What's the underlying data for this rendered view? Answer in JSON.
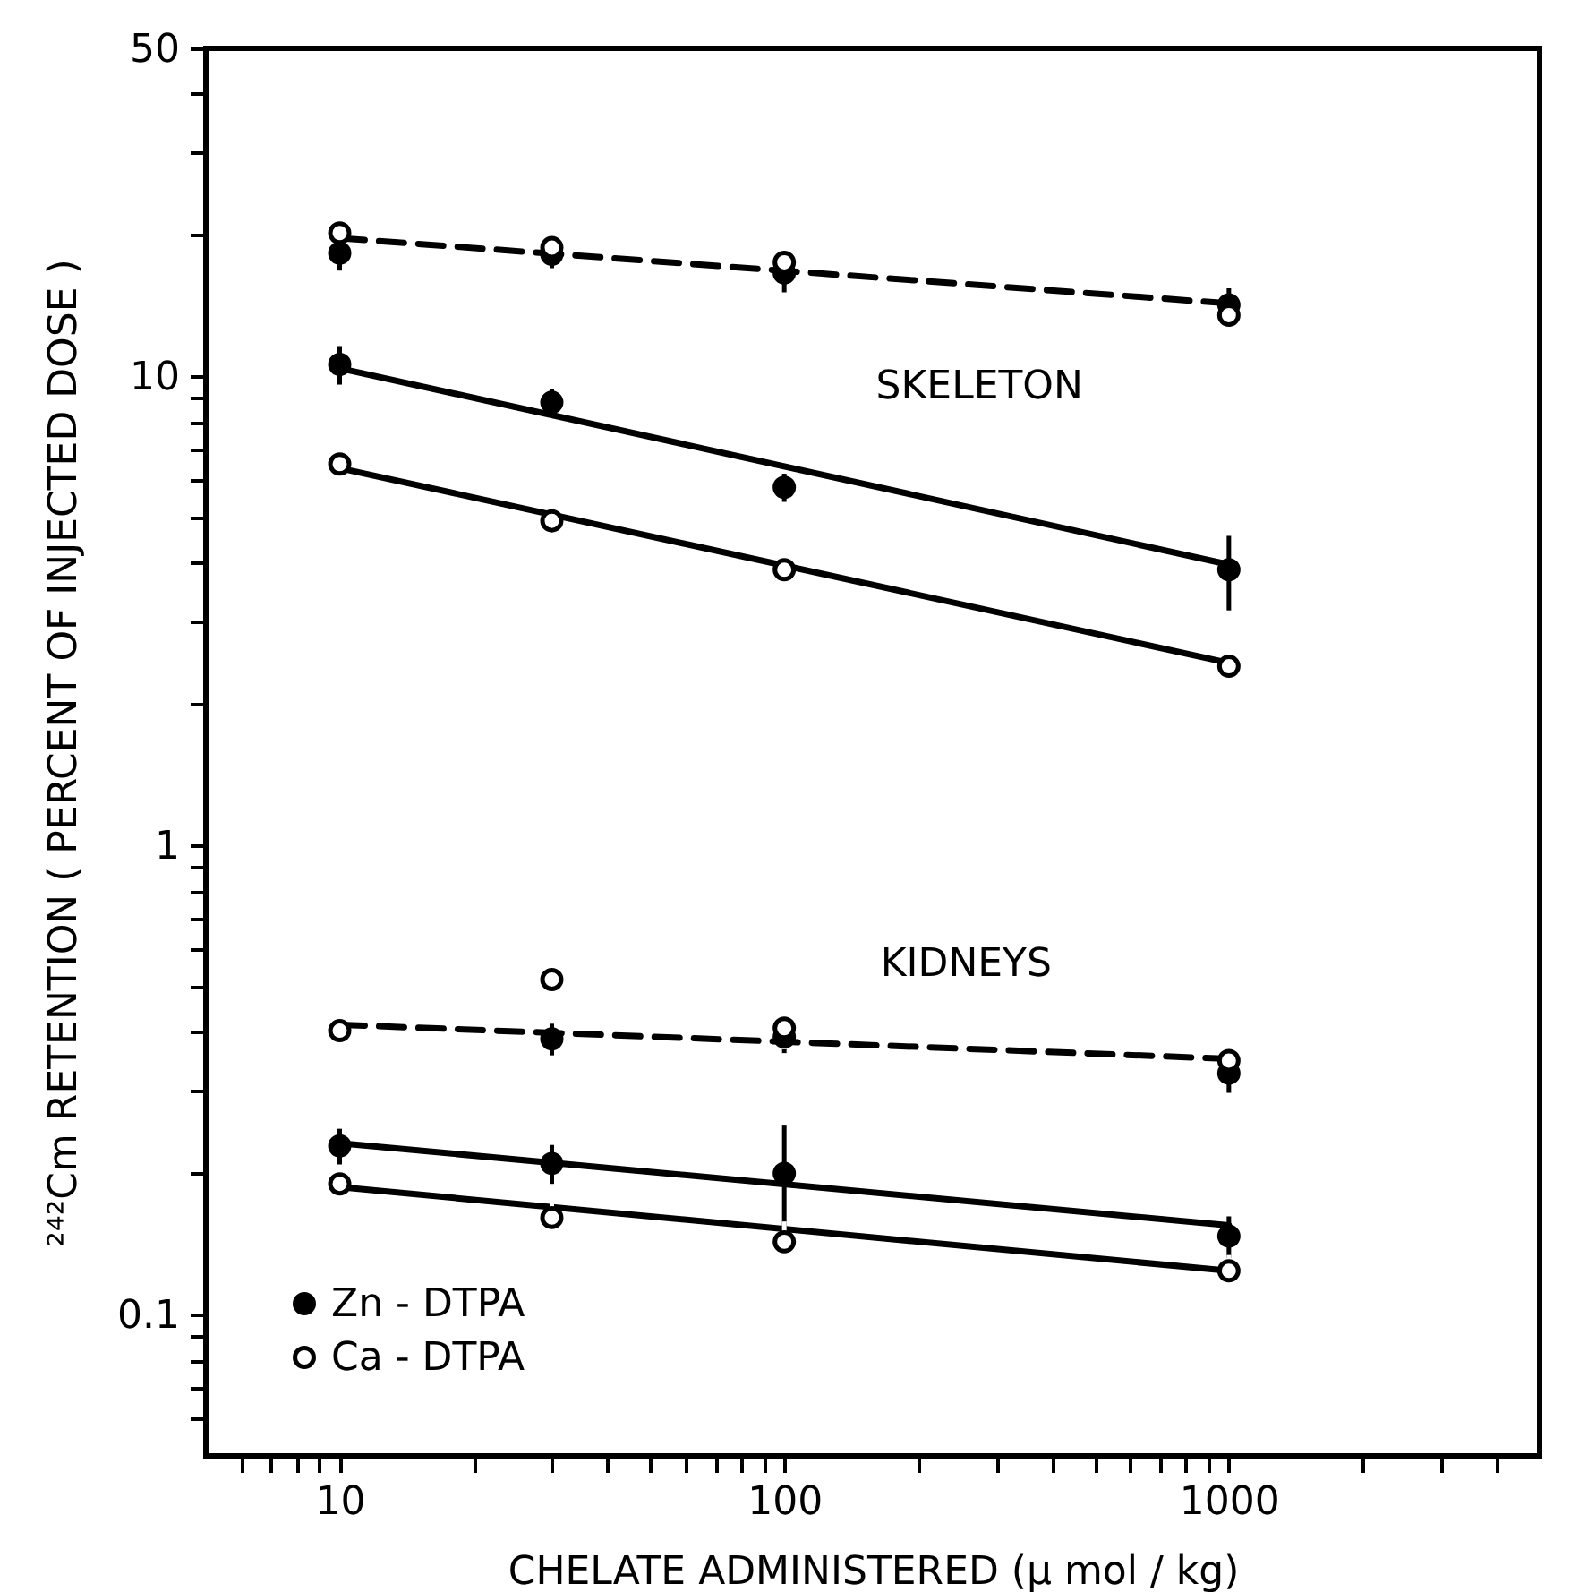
{
  "chart_data": {
    "type": "scatter",
    "xlabel": "CHELATE ADMINISTERED (μ mol / kg)",
    "ylabel": "²⁴²Cm RETENTION ( PERCENT OF INJECTED DOSE )",
    "xlim": [
      5,
      5000
    ],
    "ylim": [
      0.05,
      50
    ],
    "log": "xy",
    "grid": false,
    "legend": "bottom left",
    "marker": "circle",
    "xticks": [
      {
        "value": 6,
        "label": null
      },
      {
        "value": 7,
        "label": null
      },
      {
        "value": 8,
        "label": null
      },
      {
        "value": 9,
        "label": null
      },
      10,
      {
        "value": 20,
        "label": null
      },
      {
        "value": 30,
        "label": null
      },
      {
        "value": 40,
        "label": null
      },
      {
        "value": 50,
        "label": null
      },
      {
        "value": 60,
        "label": null
      },
      {
        "value": 70,
        "label": null
      },
      {
        "value": 80,
        "label": null
      },
      {
        "value": 90,
        "label": null
      },
      100,
      {
        "value": 200,
        "label": null
      },
      {
        "value": 300,
        "label": null
      },
      {
        "value": 400,
        "label": null
      },
      {
        "value": 500,
        "label": null
      },
      {
        "value": 600,
        "label": null
      },
      {
        "value": 700,
        "label": null
      },
      {
        "value": 800,
        "label": null
      },
      {
        "value": 900,
        "label": null
      },
      1000,
      {
        "value": 2000,
        "label": null
      },
      {
        "value": 3000,
        "label": null
      },
      {
        "value": 4000,
        "label": null
      }
    ],
    "yticks": [
      {
        "value": 0.06,
        "label": null
      },
      {
        "value": 0.07,
        "label": null
      },
      {
        "value": 0.08,
        "label": null
      },
      {
        "value": 0.09,
        "label": null
      },
      0.1,
      {
        "value": 0.2,
        "label": null
      },
      {
        "value": 0.3,
        "label": null
      },
      {
        "value": 0.4,
        "label": null
      },
      {
        "value": 0.5,
        "label": null
      },
      {
        "value": 0.6,
        "label": null
      },
      {
        "value": 0.7,
        "label": null
      },
      {
        "value": 0.8,
        "label": null
      },
      {
        "value": 0.9,
        "label": null
      },
      1,
      {
        "value": 2,
        "label": null
      },
      {
        "value": 3,
        "label": null
      },
      {
        "value": 4,
        "label": null
      },
      {
        "value": 5,
        "label": null
      },
      {
        "value": 6,
        "label": null
      },
      {
        "value": 7,
        "label": null
      },
      {
        "value": 8,
        "label": null
      },
      {
        "value": 9,
        "label": null
      },
      10,
      {
        "value": 20,
        "label": null
      },
      {
        "value": 30,
        "label": null
      },
      {
        "value": 40,
        "label": null
      },
      50
    ],
    "annotations": [
      "SKELETON",
      "KIDNEYS"
    ],
    "series": [
      {
        "type": "line",
        "color": "#000000",
        "line_style": "dashed",
        "marker": "none",
        "x": [
          10,
          1000
        ],
        "values": [
          19.7,
          14.3
        ]
      },
      {
        "type": "line",
        "color": "#000000",
        "line_style": "solid",
        "marker": "none",
        "x": [
          10,
          1000
        ],
        "values": [
          10.4,
          3.97
        ]
      },
      {
        "type": "line",
        "color": "#000000",
        "line_style": "solid",
        "marker": "none",
        "x": [
          10,
          1000
        ],
        "values": [
          6.37,
          2.45
        ]
      },
      {
        "type": "line",
        "color": "#000000",
        "line_style": "dashed",
        "marker": "none",
        "x": [
          10,
          1000
        ],
        "values": [
          0.415,
          0.351
        ]
      },
      {
        "type": "line",
        "color": "#000000",
        "line_style": "solid",
        "marker": "none",
        "x": [
          10,
          1000
        ],
        "values": [
          0.232,
          0.155
        ]
      },
      {
        "type": "line",
        "color": "#000000",
        "line_style": "solid",
        "marker": "none",
        "x": [
          10,
          1000
        ],
        "values": [
          0.187,
          0.124
        ]
      },
      {
        "name": "Zn - DTPA",
        "color": "#000000",
        "x": [
          10,
          30,
          100,
          1000,
          10,
          30,
          100,
          1000,
          30,
          100,
          1000,
          10,
          30,
          100,
          1000
        ],
        "values": [
          18.3,
          18.2,
          16.6,
          14.2,
          10.6,
          8.8,
          5.8,
          3.87,
          0.387,
          0.391,
          0.327,
          0.229,
          0.21,
          0.2,
          0.147
        ],
        "errors": [
          1.5,
          1.2,
          1.5,
          1.2,
          1.0,
          0.6,
          0.4,
          0.7,
          0.03,
          0.03,
          0.03,
          0.02,
          0.02,
          0.054,
          0.015
        ]
      },
      {
        "name": "Ca - DTPA",
        "color": "#ffffff",
        "x": [
          10,
          30,
          100,
          1000,
          10,
          30,
          100,
          1000,
          10,
          30,
          100,
          1000,
          10,
          30,
          100,
          1000
        ],
        "values": [
          20.2,
          18.8,
          17.5,
          13.5,
          6.5,
          4.92,
          3.87,
          2.41,
          0.403,
          0.518,
          0.408,
          0.348,
          0.19,
          0.161,
          0.143,
          0.124
        ],
        "errors": [
          2,
          1.3,
          1.5,
          1.2,
          0.3,
          0.3,
          0.2,
          0.15,
          0.04,
          0.05,
          0.04,
          0.03,
          0.01,
          0.02,
          0.015,
          0.01
        ]
      }
    ]
  }
}
